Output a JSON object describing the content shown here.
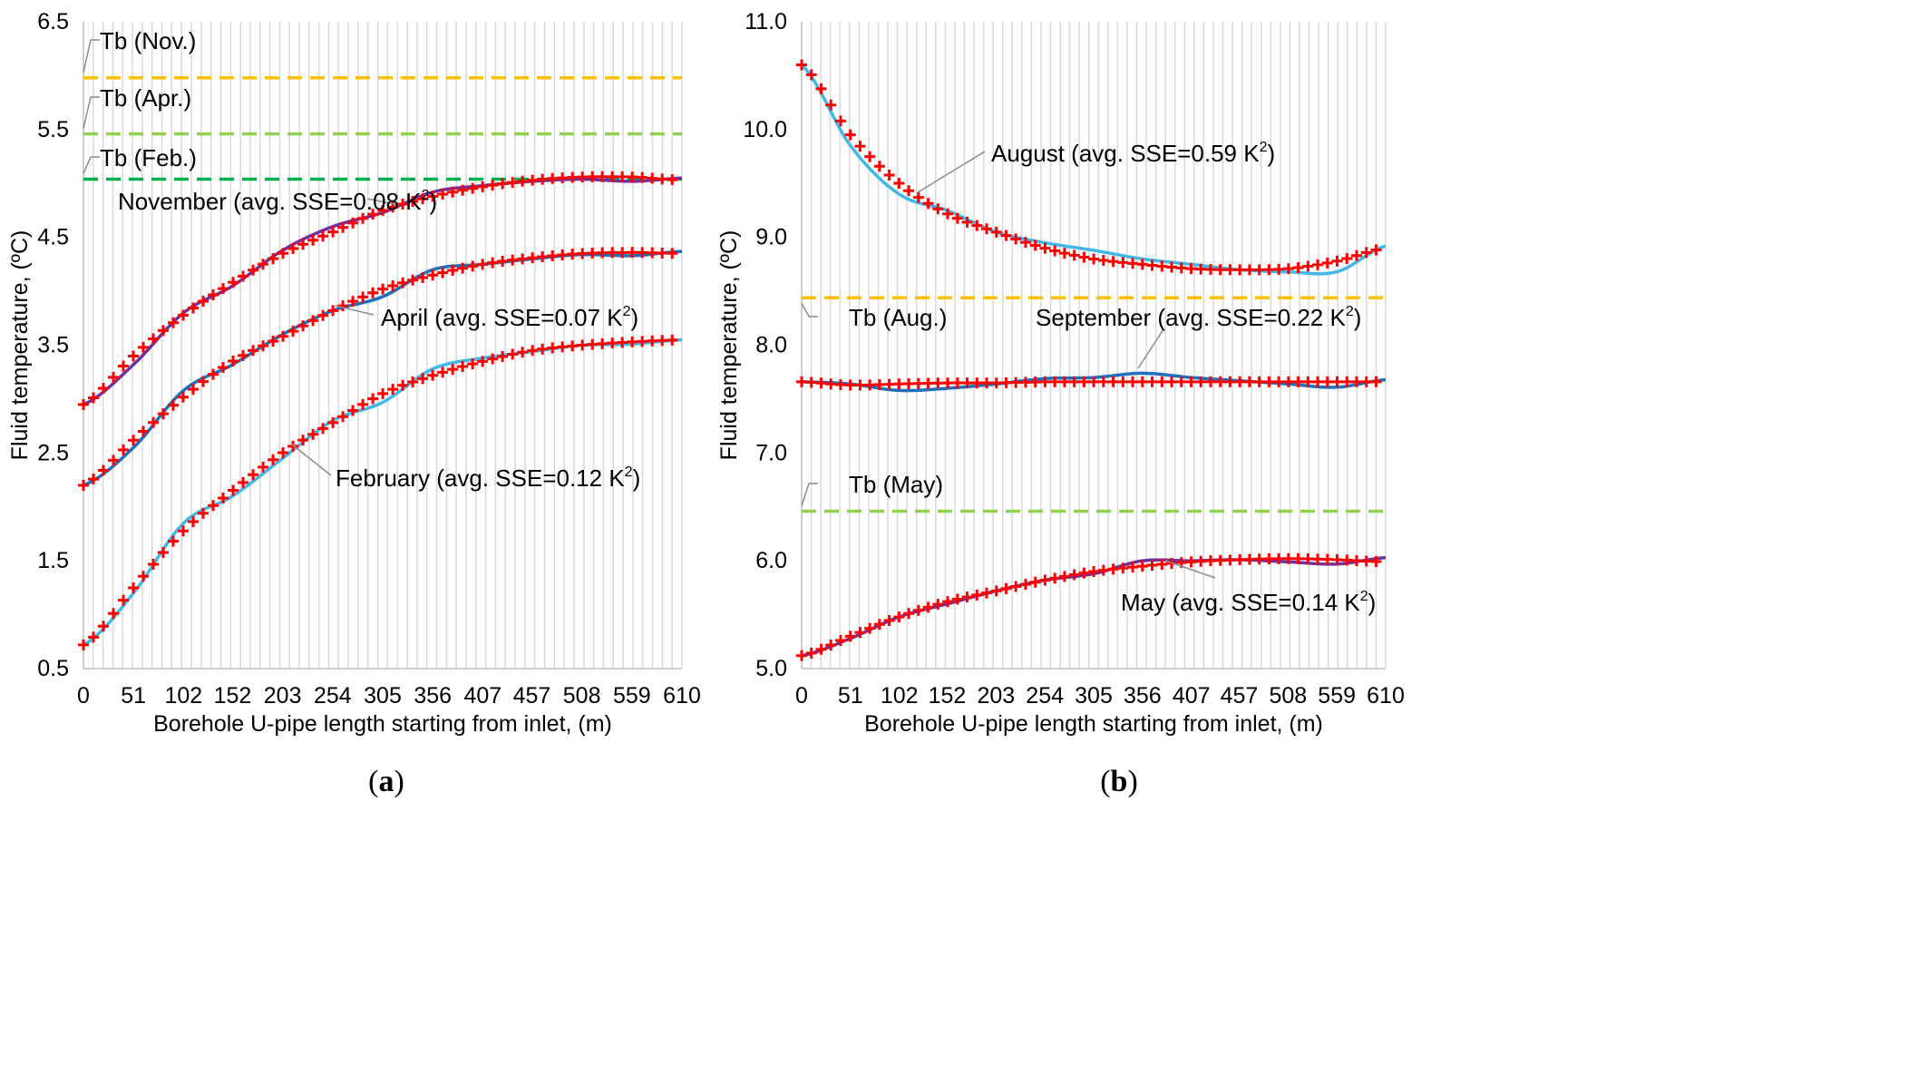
{
  "chart_data": [
    {
      "type": "line",
      "panel_label": "a",
      "xlabel": "Borehole U-pipe length starting from inlet, (m)",
      "ylabel": "Fluid temperature, (ºC)",
      "xlim": [
        0,
        610
      ],
      "ylim": [
        0.5,
        6.5
      ],
      "x_ticks": [
        0,
        51,
        102,
        152,
        203,
        254,
        305,
        356,
        407,
        457,
        508,
        559,
        610
      ],
      "y_ticks": [
        "0.5",
        "1.5",
        "2.5",
        "3.5",
        "4.5",
        "5.5",
        "6.5"
      ],
      "grid": "vertical",
      "reference_lines": [
        {
          "name": "Tb (Nov.)",
          "y": 5.98,
          "color": "#FFC000"
        },
        {
          "name": "Tb (Apr.)",
          "y": 5.46,
          "color": "#92D050"
        },
        {
          "name": "Tb (Feb.)",
          "y": 5.04,
          "color": "#00B050"
        }
      ],
      "series": [
        {
          "name": "November",
          "label": "November (avg. SSE=0.08 K²)",
          "label_main": "November (avg. SSE=0.08 K",
          "label_end": ")",
          "color": "#7030A0",
          "x": [
            0,
            51,
            102,
            152,
            203,
            254,
            305,
            356,
            407,
            457,
            508,
            559,
            610
          ],
          "measured": [
            2.95,
            3.32,
            3.8,
            4.05,
            4.38,
            4.6,
            4.73,
            4.92,
            4.98,
            5.02,
            5.04,
            5.02,
            5.05
          ],
          "model": [
            2.95,
            3.4,
            3.78,
            4.08,
            4.35,
            4.55,
            4.75,
            4.88,
            4.97,
            5.03,
            5.06,
            5.06,
            5.03
          ]
        },
        {
          "name": "April",
          "label": "April (avg. SSE=0.07 K²)",
          "label_main": "April (avg. SSE=0.07 K",
          "label_end": ")",
          "color": "#1F6FBF",
          "x": [
            0,
            51,
            102,
            152,
            203,
            254,
            305,
            356,
            407,
            457,
            508,
            559,
            610
          ],
          "measured": [
            2.2,
            2.55,
            3.08,
            3.32,
            3.6,
            3.82,
            3.95,
            4.2,
            4.25,
            4.3,
            4.34,
            4.33,
            4.37
          ],
          "model": [
            2.2,
            2.62,
            3.02,
            3.35,
            3.58,
            3.82,
            4.02,
            4.15,
            4.25,
            4.31,
            4.35,
            4.36,
            4.35
          ]
        },
        {
          "name": "February",
          "label": "February (avg. SSE=0.12 K²)",
          "label_main": "February (avg. SSE=0.12 K",
          "label_end": ")",
          "color": "#41B8E8",
          "x": [
            0,
            51,
            102,
            152,
            203,
            254,
            305,
            356,
            407,
            457,
            508,
            559,
            610
          ],
          "measured": [
            0.72,
            1.2,
            1.85,
            2.1,
            2.45,
            2.8,
            2.97,
            3.28,
            3.38,
            3.44,
            3.5,
            3.51,
            3.55
          ],
          "model": [
            0.72,
            1.25,
            1.78,
            2.15,
            2.5,
            2.78,
            3.05,
            3.22,
            3.35,
            3.45,
            3.5,
            3.53,
            3.55
          ]
        }
      ]
    },
    {
      "type": "line",
      "panel_label": "b",
      "xlabel": "Borehole U-pipe length starting from inlet, (m)",
      "ylabel": "Fluid temperature, (ºC)",
      "xlim": [
        0,
        610
      ],
      "ylim": [
        5.0,
        11.0
      ],
      "x_ticks": [
        0,
        51,
        102,
        152,
        203,
        254,
        305,
        356,
        407,
        457,
        508,
        559,
        610
      ],
      "y_ticks": [
        "5.0",
        "6.0",
        "7.0",
        "8.0",
        "9.0",
        "10.0",
        "11.0"
      ],
      "grid": "vertical",
      "reference_lines": [
        {
          "name": "Tb (Aug.)",
          "y": 8.44,
          "color": "#FFC000"
        },
        {
          "name": "Tb (May)",
          "y": 6.46,
          "color": "#92D050"
        }
      ],
      "series": [
        {
          "name": "August",
          "label": "August (avg. SSE=0.59 K²)",
          "label_main": "August (avg. SSE=0.59 K",
          "label_end": ")",
          "color": "#41B8E8",
          "x": [
            0,
            51,
            102,
            152,
            203,
            254,
            305,
            356,
            407,
            457,
            508,
            559,
            610
          ],
          "measured": [
            10.6,
            9.85,
            9.4,
            9.25,
            9.05,
            8.95,
            8.88,
            8.8,
            8.75,
            8.7,
            8.68,
            8.68,
            8.92
          ],
          "model": [
            10.6,
            9.95,
            9.5,
            9.22,
            9.05,
            8.9,
            8.8,
            8.75,
            8.71,
            8.7,
            8.71,
            8.78,
            8.9
          ]
        },
        {
          "name": "September",
          "label": "September (avg. SSE=0.22 K²)",
          "label_main": "September (avg. SSE=0.22 K",
          "label_end": ")",
          "color": "#1F6FBF",
          "x": [
            0,
            51,
            102,
            152,
            203,
            254,
            305,
            356,
            407,
            457,
            508,
            559,
            610
          ],
          "measured": [
            7.66,
            7.64,
            7.58,
            7.6,
            7.64,
            7.69,
            7.7,
            7.74,
            7.7,
            7.67,
            7.64,
            7.61,
            7.68
          ],
          "model": [
            7.66,
            7.63,
            7.64,
            7.65,
            7.65,
            7.66,
            7.66,
            7.66,
            7.66,
            7.66,
            7.66,
            7.66,
            7.66
          ]
        },
        {
          "name": "May",
          "label": "May (avg. SSE=0.14 K²)",
          "label_main": "May (avg. SSE=0.14 K",
          "label_end": ")",
          "color": "#7030A0",
          "x": [
            0,
            51,
            102,
            152,
            203,
            254,
            305,
            356,
            407,
            457,
            508,
            559,
            610
          ],
          "measured": [
            5.12,
            5.28,
            5.48,
            5.6,
            5.72,
            5.82,
            5.88,
            6.0,
            6.0,
            6.01,
            5.99,
            5.97,
            6.03
          ],
          "model": [
            5.12,
            5.3,
            5.48,
            5.62,
            5.72,
            5.82,
            5.9,
            5.95,
            5.99,
            6.01,
            6.02,
            6.01,
            5.99
          ]
        }
      ]
    }
  ]
}
